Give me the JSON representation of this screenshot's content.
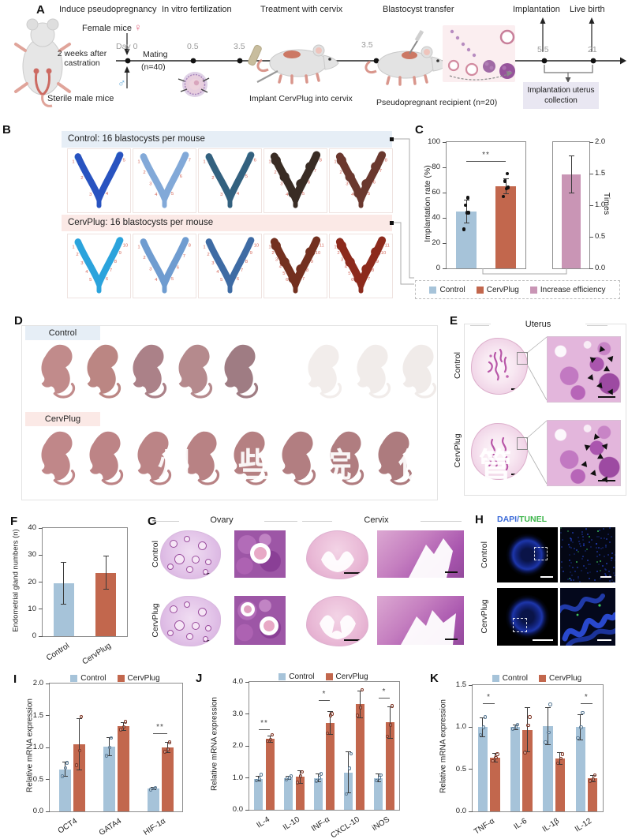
{
  "panels": {
    "a": {
      "label": "A",
      "step_titles": [
        "Induce pseudopregnancy",
        "In vitro fertilization",
        "Treatment with cervix",
        "Blastocyst transfer",
        "Implantation",
        "Live birth"
      ],
      "female_label": "Female mice",
      "female_symbol": "♀",
      "male_label": "Sterile male mice",
      "male_symbol": "♂",
      "castration_note": "2 weeks after castration",
      "day0": "Day 0",
      "mating_line1": "Mating",
      "mating_line2": "(n=40)",
      "timeline_ticks": [
        "0.5",
        "3.5",
        "3.5",
        "5.5",
        "21"
      ],
      "implant_note": "Implant CervPlug into cervix",
      "recipient_note": "Pseudopregnant recipient (n=20)",
      "collection_box": "Implantation uterus collection"
    },
    "b": {
      "label": "B",
      "control_header": "Control: 16 blastocysts per mouse",
      "cervplug_header": "CervPlug: 16 blastocysts per mouse",
      "site_number_color": "#d4695c",
      "control_uteri": [
        {
          "color": "#2853c0",
          "tip": "#7fd9f0",
          "sites": 5
        },
        {
          "color": "#82a9d8",
          "sites": 7
        },
        {
          "color": "#33617f",
          "tip": "#9adbe8",
          "sites": 6
        },
        {
          "color": "#392c24",
          "sites": 8,
          "beads": true
        },
        {
          "color": "#6a382e",
          "sites": 8,
          "beads": true
        }
      ],
      "cervplug_uteri": [
        {
          "color": "#2ba3dc",
          "tip": "#7fe4f4",
          "sites": 10
        },
        {
          "color": "#6f9cd0",
          "sites": 8
        },
        {
          "color": "#3e6ba4",
          "sites": 10
        },
        {
          "color": "#73301f",
          "sites": 11,
          "beads": true
        },
        {
          "color": "#8c2a1c",
          "sites": 11,
          "beads": true
        }
      ]
    },
    "c": {
      "label": "C"
    },
    "d": {
      "label": "D",
      "control_header": "Control",
      "cervplug_header": "CervPlug",
      "control_pups": [
        "#c18b8b",
        "#bb8683",
        "#ab8188",
        "#b58a8d",
        "#9f7c83",
        "#f2edeb",
        "#f1ecea",
        "#f0ebe9"
      ],
      "cervplug_pups": [
        "#c08789",
        "#bd8486",
        "#bb8486",
        "#b88284",
        "#b58082",
        "#b27e81",
        "#b07d80",
        "#ad7b7e"
      ],
      "watermark": "州 些 院 供 管"
    },
    "e": {
      "label": "E",
      "title": "Uterus",
      "row1": "Control",
      "row2": "CervPlug"
    },
    "f": {
      "label": "F"
    },
    "g": {
      "label": "G",
      "col1": "Ovary",
      "col2": "Cervix",
      "row1": "Control",
      "row2": "CervPlug"
    },
    "h": {
      "label": "H",
      "stain1": "DAPI",
      "sep": "/",
      "stain2": "TUNEL",
      "stain1_color": "#3b6ad8",
      "stain2_color": "#3cb54a",
      "row1": "Control",
      "row2": "CervPlug"
    },
    "i": {
      "label": "I"
    },
    "j": {
      "label": "J"
    },
    "k": {
      "label": "K"
    }
  },
  "chart_data": [
    {
      "id": "implantation",
      "type": "bar",
      "title": "",
      "xlabel": "",
      "ylabel": "Implantation rate (%)",
      "ylim": [
        0,
        100
      ],
      "yticks": [
        "0",
        "20",
        "40",
        "60",
        "80",
        "100"
      ],
      "tick_side": "left",
      "categories": [
        "Control",
        "CervPlug"
      ],
      "colors": [
        "#a6c3d9",
        "#c2674d"
      ],
      "values": [
        45,
        65
      ],
      "errors": [
        9,
        6
      ],
      "dots": [
        [
          31,
          44,
          44,
          50,
          56
        ],
        [
          57,
          63,
          64,
          69,
          75
        ]
      ],
      "dot_color": "#111111",
      "show_xlabels": false,
      "sig": [
        {
          "between": [
            0,
            1
          ],
          "y": 85,
          "label": "**"
        }
      ]
    },
    {
      "id": "efficiency",
      "type": "bar",
      "title": "",
      "xlabel": "",
      "ylabel": "Times",
      "ylim": [
        0,
        2
      ],
      "yticks": [
        "0.0",
        "0.5",
        "1.0",
        "1.5",
        "2.0"
      ],
      "tick_side": "right",
      "categories": [
        "Increase efficiency"
      ],
      "colors": [
        "#c995b5"
      ],
      "values": [
        1.49
      ],
      "errors": [
        0.29
      ],
      "dots": [
        []
      ],
      "show_xlabels": false,
      "sig": []
    },
    {
      "id": "glands",
      "type": "bar",
      "title": "",
      "xlabel": "",
      "ylabel": "Endometrial gland numbers (n)",
      "ylim": [
        0,
        40
      ],
      "yticks": [
        "0",
        "10",
        "20",
        "30",
        "40"
      ],
      "tick_side": "left",
      "categories": [
        "Control",
        "CervPlug"
      ],
      "colors": [
        "#a6c3d9",
        "#c2674d"
      ],
      "values": [
        19.5,
        23.5
      ],
      "errors": [
        7.8,
        6.2
      ],
      "dots": [
        [],
        []
      ],
      "show_xlabels": true,
      "sig": []
    },
    {
      "id": "mrna_embryo",
      "type": "bar",
      "title": "",
      "xlabel": "",
      "ylabel": "Relative mRNA expression",
      "ylim": [
        0,
        2
      ],
      "yticks": [
        "0.0",
        "0.5",
        "1.0",
        "1.5",
        "2.0"
      ],
      "tick_side": "left",
      "categories": [
        "OCT4",
        "GATA4",
        "HIF-1α"
      ],
      "show_xlabels": true,
      "series": [
        {
          "name": "Control",
          "color": "#a6c3d9",
          "dot": "#5a7b96",
          "values": [
            0.66,
            1.01,
            0.36
          ],
          "errors": [
            0.11,
            0.14,
            0.02
          ],
          "dots": [
            [
              0.55,
              0.68,
              0.76
            ],
            [
              0.87,
              1.0,
              1.15
            ],
            [
              0.34,
              0.36,
              0.37
            ]
          ]
        },
        {
          "name": "CervPlug",
          "color": "#c2674d",
          "dot": "#7e3322",
          "values": [
            1.05,
            1.33,
            1.0
          ],
          "errors": [
            0.4,
            0.06,
            0.08
          ],
          "dots": [
            [
              0.72,
              0.95,
              1.48
            ],
            [
              1.28,
              1.32,
              1.4
            ],
            [
              0.93,
              0.97,
              1.08
            ]
          ]
        }
      ],
      "sig": [
        {
          "group": 2,
          "y": 1.22,
          "label": "**"
        }
      ]
    },
    {
      "id": "mrna_m1",
      "type": "bar",
      "title": "",
      "xlabel": "",
      "ylabel": "Relative mRNA expression",
      "ylim": [
        0,
        4
      ],
      "yticks": [
        "0.0",
        "1.0",
        "2.0",
        "3.0",
        "4.0"
      ],
      "tick_side": "left",
      "categories": [
        "IL-4",
        "IL-10",
        "INF-α",
        "CXCL-10",
        "iNOS"
      ],
      "show_xlabels": true,
      "series": [
        {
          "name": "Control",
          "color": "#a6c3d9",
          "dot": "#5a7b96",
          "values": [
            0.97,
            1.0,
            1.0,
            1.17,
            1.0
          ],
          "errors": [
            0.08,
            0.05,
            0.13,
            0.65,
            0.12
          ],
          "dots": [
            [
              0.92,
              0.97,
              1.1
            ],
            [
              0.95,
              1.0,
              1.05
            ],
            [
              0.9,
              1.0,
              1.12
            ],
            [
              0.5,
              1.3,
              1.75
            ],
            [
              0.92,
              1.0,
              1.08
            ]
          ]
        },
        {
          "name": "CervPlug",
          "color": "#c2674d",
          "dot": "#7e3322",
          "values": [
            2.22,
            1.03,
            2.72,
            3.3,
            2.73
          ],
          "errors": [
            0.1,
            0.2,
            0.35,
            0.42,
            0.5
          ],
          "dots": [
            [
              2.15,
              2.2,
              2.35
            ],
            [
              0.85,
              1.05,
              1.18
            ],
            [
              2.4,
              2.95,
              3.0
            ],
            [
              2.95,
              3.2,
              3.75
            ],
            [
              2.3,
              2.65,
              3.25
            ]
          ]
        }
      ],
      "sig": [
        {
          "group": 0,
          "y": 2.52,
          "label": "**"
        },
        {
          "group": 2,
          "y": 3.42,
          "label": "*"
        },
        {
          "group": 4,
          "y": 3.5,
          "label": "*"
        }
      ]
    },
    {
      "id": "mrna_m2",
      "type": "bar",
      "title": "",
      "xlabel": "",
      "ylabel": "Relative mRNA expression",
      "ylim": [
        0,
        1.5
      ],
      "yticks": [
        "0.0",
        "0.5",
        "1.0",
        "1.5"
      ],
      "tick_side": "left",
      "categories": [
        "TNF-α",
        "IL-6",
        "IL-1β",
        "IL-12"
      ],
      "show_xlabels": true,
      "series": [
        {
          "name": "Control",
          "color": "#a6c3d9",
          "dot": "#5a7b96",
          "values": [
            1.0,
            1.0,
            1.01,
            1.0
          ],
          "errors": [
            0.11,
            0.03,
            0.22,
            0.15
          ],
          "dots": [
            [
              0.91,
              1.0,
              1.12
            ],
            [
              0.98,
              1.0,
              1.03
            ],
            [
              0.82,
              0.94,
              1.27
            ],
            [
              0.87,
              1.0,
              1.17
            ]
          ]
        },
        {
          "name": "CervPlug",
          "color": "#c2674d",
          "dot": "#7e3322",
          "values": [
            0.64,
            0.97,
            0.63,
            0.39
          ],
          "errors": [
            0.05,
            0.26,
            0.07,
            0.04
          ],
          "dots": [
            [
              0.6,
              0.64,
              0.68
            ],
            [
              0.7,
              1.02,
              1.12
            ],
            [
              0.57,
              0.63,
              0.68
            ],
            [
              0.36,
              0.38,
              0.43
            ]
          ]
        }
      ],
      "sig": [
        {
          "group": 0,
          "y": 1.28,
          "label": "*"
        },
        {
          "group": 3,
          "y": 1.28,
          "label": "*"
        }
      ]
    }
  ]
}
